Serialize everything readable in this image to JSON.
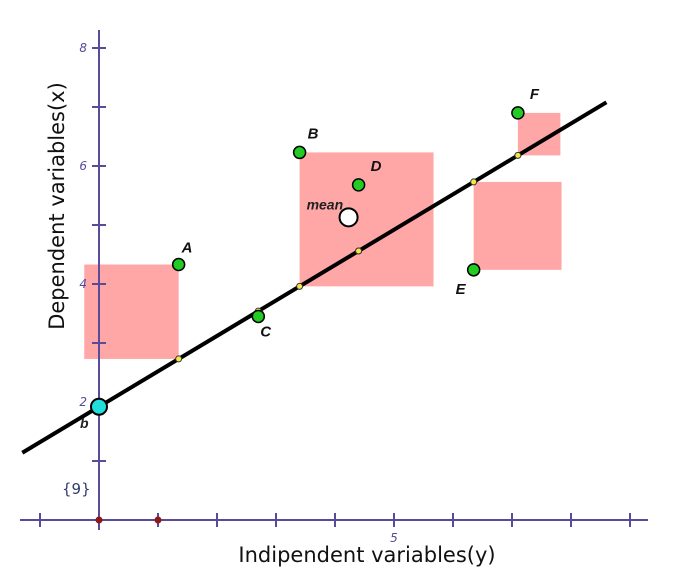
{
  "chart_data": {
    "type": "scatter",
    "title": "",
    "xlabel": "Indipendent variables(y)",
    "ylabel": "Dependent variables(x)",
    "xlim": [
      -1.3,
      9.3
    ],
    "ylim": [
      -0.05,
      8.3
    ],
    "x_tick_labels": [
      {
        "value": 5,
        "label": "5"
      }
    ],
    "y_tick_labels": [
      {
        "value": 2,
        "label": "2"
      },
      {
        "value": 4,
        "label": "4"
      },
      {
        "value": 6,
        "label": "6"
      },
      {
        "value": 8,
        "label": "8"
      }
    ],
    "corner_label": "{9}",
    "intercept_label": "b",
    "regression_line": {
      "intercept": 1.92,
      "slope": 0.6,
      "x_range": [
        -1.3,
        8.6
      ]
    },
    "mean_point": {
      "label": "mean",
      "x": 4.23,
      "y": 5.13
    },
    "points": [
      {
        "label": "A",
        "x": 1.35,
        "y": 4.33
      },
      {
        "label": "B",
        "x": 3.4,
        "y": 6.23
      },
      {
        "label": "C",
        "x": 2.7,
        "y": 3.45
      },
      {
        "label": "D",
        "x": 4.4,
        "y": 5.68
      },
      {
        "label": "E",
        "x": 6.35,
        "y": 4.24
      },
      {
        "label": "F",
        "x": 7.1,
        "y": 6.9
      }
    ],
    "grid": false,
    "colors": {
      "points": "#22cc22",
      "squares": "#ffa6a6",
      "line": "#000000",
      "axes": "#5a4a9a",
      "intercept_point": "#22dddd"
    }
  }
}
